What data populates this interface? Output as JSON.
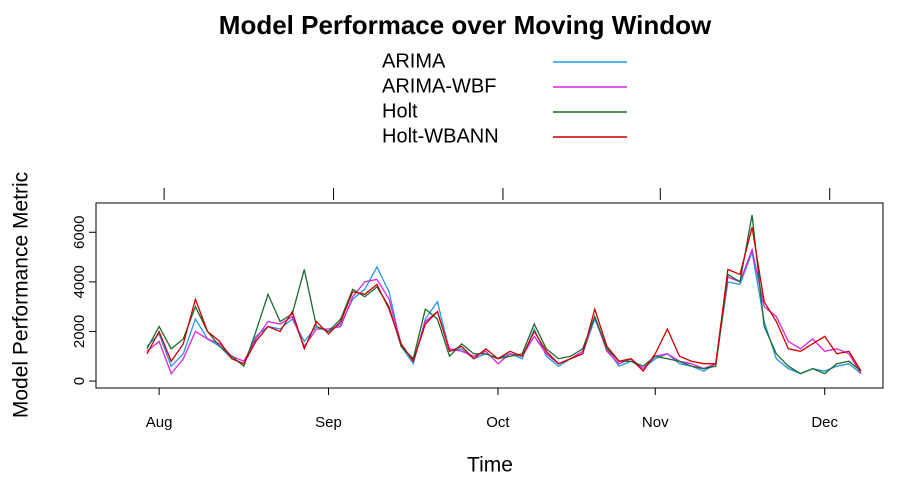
{
  "chart_data": {
    "type": "line",
    "title": "Model Performace over Moving Window",
    "x_label": "Time",
    "y_label": "Model Performance Metric",
    "legend": "top",
    "categories": [
      null,
      "Aug",
      null,
      null,
      null,
      null,
      null,
      null,
      null,
      null,
      null,
      null,
      null,
      null,
      null,
      "Sep",
      null,
      null,
      null,
      null,
      null,
      null,
      null,
      null,
      null,
      null,
      null,
      null,
      null,
      "Oct",
      null,
      null,
      null,
      null,
      null,
      null,
      null,
      null,
      null,
      null,
      null,
      null,
      "Nov",
      null,
      null,
      null,
      null,
      null,
      null,
      null,
      null,
      null,
      null,
      null,
      null,
      null,
      "Dec",
      null,
      null,
      null
    ],
    "series": [
      {
        "name": "ARIMA",
        "color": "#2297e6",
        "values": [
          1400,
          1900,
          600,
          1100,
          2500,
          1700,
          1400,
          900,
          700,
          1800,
          2200,
          2100,
          2500,
          1600,
          2200,
          2000,
          2300,
          3300,
          3700,
          4600,
          3600,
          1400,
          700,
          2500,
          3200,
          1200,
          1300,
          900,
          1100,
          900,
          1100,
          900,
          2100,
          1000,
          600,
          900,
          1100,
          2500,
          1300,
          600,
          800,
          500,
          900,
          1100,
          700,
          600,
          400,
          700,
          4000,
          3900,
          5200,
          2400,
          900,
          500,
          300,
          500,
          400,
          600,
          700,
          300
        ]
      },
      {
        "name": "ARIMA-WBF",
        "color": "#dd22dd",
        "values": [
          1200,
          1600,
          300,
          900,
          2000,
          1700,
          1500,
          1000,
          800,
          1700,
          2400,
          2300,
          2600,
          1400,
          2100,
          2100,
          2200,
          3400,
          4000,
          4100,
          3300,
          1500,
          800,
          2400,
          2800,
          1300,
          1200,
          1000,
          1200,
          700,
          1100,
          1000,
          1800,
          1100,
          700,
          900,
          1200,
          2600,
          1200,
          700,
          900,
          500,
          1000,
          1100,
          800,
          700,
          500,
          700,
          4200,
          4000,
          5300,
          3000,
          2600,
          1600,
          1300,
          1700,
          1200,
          1300,
          1100,
          300
        ]
      },
      {
        "name": "Holt",
        "color": "#1b6b2a",
        "values": [
          1300,
          2200,
          1300,
          1700,
          3000,
          2000,
          1400,
          1000,
          600,
          2000,
          3500,
          2400,
          2700,
          4500,
          2200,
          2000,
          2500,
          3700,
          3400,
          3800,
          3000,
          1400,
          900,
          2900,
          2500,
          1000,
          1500,
          1100,
          1100,
          900,
          1000,
          1100,
          2300,
          1300,
          900,
          1000,
          1300,
          2600,
          1300,
          800,
          800,
          600,
          1000,
          900,
          800,
          600,
          500,
          600,
          4300,
          4000,
          6700,
          2200,
          1100,
          600,
          300,
          500,
          300,
          700,
          800,
          400
        ]
      },
      {
        "name": "Holt-WBANN",
        "color": "#cc0000",
        "values": [
          1100,
          2000,
          800,
          1500,
          3300,
          2000,
          1600,
          900,
          700,
          1600,
          2200,
          2000,
          2800,
          1300,
          2400,
          1900,
          2400,
          3600,
          3500,
          3900,
          2900,
          1500,
          800,
          2300,
          2800,
          1200,
          1400,
          900,
          1300,
          900,
          1200,
          1000,
          2000,
          1200,
          700,
          900,
          1100,
          2900,
          1400,
          800,
          900,
          400,
          1100,
          2100,
          1000,
          800,
          700,
          700,
          4500,
          4300,
          6200,
          3200,
          2400,
          1300,
          1200,
          1500,
          1800,
          1100,
          1200,
          400
        ]
      }
    ],
    "ylim": [
      -280,
      7180
    ],
    "yticks": [
      0,
      2000,
      4000,
      6000
    ]
  }
}
